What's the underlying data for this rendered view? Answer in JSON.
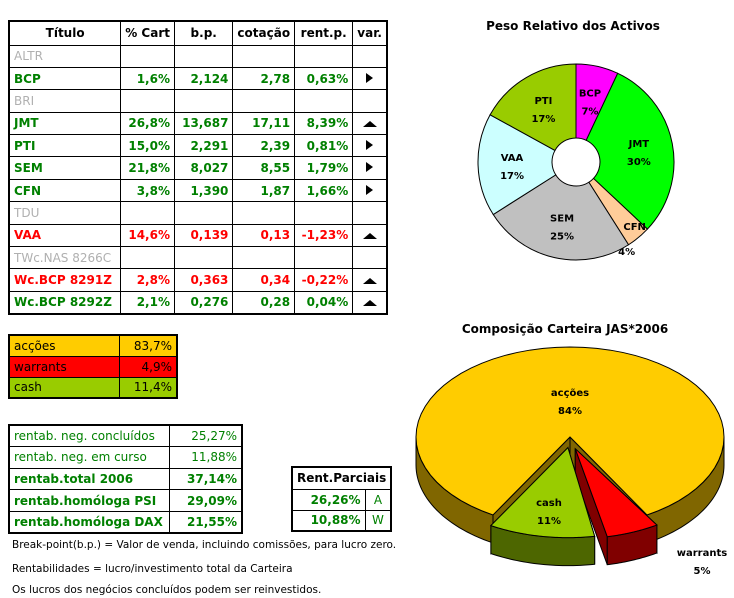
{
  "holdings": {
    "headers": [
      "Título",
      "% Cart",
      "b.p.",
      "cotação",
      "rent.p.",
      "var."
    ],
    "rows": [
      {
        "titulo": "ALTR",
        "cart": "",
        "bp": "",
        "cotacao": "",
        "rent": "",
        "var": "",
        "style": "gray"
      },
      {
        "titulo": "BCP",
        "cart": "1,6%",
        "bp": "2,124",
        "cotacao": "2,78",
        "rent": "0,63%",
        "var": "right",
        "style": "g"
      },
      {
        "titulo": "BRI",
        "cart": "",
        "bp": "",
        "cotacao": "",
        "rent": "",
        "var": "",
        "style": "gray"
      },
      {
        "titulo": "JMT",
        "cart": "26,8%",
        "bp": "13,687",
        "cotacao": "17,11",
        "rent": "8,39%",
        "var": "up",
        "style": "g"
      },
      {
        "titulo": "PTI",
        "cart": "15,0%",
        "bp": "2,291",
        "cotacao": "2,39",
        "rent": "0,81%",
        "var": "right",
        "style": "g"
      },
      {
        "titulo": "SEM",
        "cart": "21,8%",
        "bp": "8,027",
        "cotacao": "8,55",
        "rent": "1,79%",
        "var": "right",
        "style": "g"
      },
      {
        "titulo": "CFN",
        "cart": "3,8%",
        "bp": "1,390",
        "cotacao": "1,87",
        "rent": "1,66%",
        "var": "right",
        "style": "g"
      },
      {
        "titulo": "TDU",
        "cart": "",
        "bp": "",
        "cotacao": "",
        "rent": "",
        "var": "",
        "style": "gray"
      },
      {
        "titulo": "VAA",
        "cart": "14,6%",
        "bp": "0,139",
        "cotacao": "0,13",
        "rent": "-1,23%",
        "var": "up",
        "style": "r"
      },
      {
        "titulo": "TWc.NAS 8266C",
        "cart": "",
        "bp": "",
        "cotacao": "",
        "rent": "",
        "var": "",
        "style": "gray"
      },
      {
        "titulo": "Wc.BCP 8291Z",
        "cart": "2,8%",
        "bp": "0,363",
        "cotacao": "0,34",
        "rent": "-0,22%",
        "var": "up",
        "style": "r"
      },
      {
        "titulo": "Wc.BCP 8292Z",
        "cart": "2,1%",
        "bp": "0,276",
        "cotacao": "0,28",
        "rent": "0,04%",
        "var": "up",
        "style": "g"
      }
    ]
  },
  "allocation": [
    {
      "label": "acções",
      "value": "83,7%",
      "color": "#ffcc00"
    },
    {
      "label": "warrants",
      "value": "4,9%",
      "color": "#ff0000"
    },
    {
      "label": "cash",
      "value": "11,4%",
      "color": "#99cc00"
    }
  ],
  "returns": [
    {
      "label": "rentab. neg. concluídos",
      "value": "25,27%",
      "bold": false
    },
    {
      "label": "rentab. neg. em curso",
      "value": "11,88%",
      "bold": false
    },
    {
      "label": "rentab.total 2006",
      "value": "37,14%",
      "bold": true
    },
    {
      "label": "rentab.homóloga PSI",
      "value": "29,09%",
      "bold": true
    },
    {
      "label": "rentab.homóloga DAX",
      "value": "21,55%",
      "bold": true
    }
  ],
  "partial": {
    "title": "Rent.Parciais",
    "rows": [
      {
        "value": "26,26%",
        "code": "A"
      },
      {
        "value": "10,88%",
        "code": "W"
      }
    ]
  },
  "notes": [
    "Break-point(b.p.) = Valor de venda, incluindo comissões, para lucro zero.",
    "Rentabilidades = lucro/investimento total da Carteira",
    "Os lucros dos negócios concluídos podem ser reinvestidos."
  ],
  "chart_data": [
    {
      "type": "pie",
      "variant": "doughnut",
      "title": "Peso Relativo dos Activos",
      "categories": [
        "BCP",
        "JMT",
        "CFN",
        "SEM",
        "VAA",
        "PTI"
      ],
      "values": [
        7,
        30,
        4,
        25,
        17,
        17
      ],
      "value_labels": [
        "7%",
        "30%",
        "4%",
        "25%",
        "17%",
        "17%"
      ],
      "colors": [
        "#ff00ff",
        "#00ff00",
        "#ffcc99",
        "#c0c0c0",
        "#ccffff",
        "#99cc00"
      ]
    },
    {
      "type": "pie",
      "variant": "3d-exploded",
      "title": "Composição Carteira JAS*2006",
      "categories": [
        "acções",
        "warrants",
        "cash"
      ],
      "values": [
        84,
        5,
        11
      ],
      "value_labels": [
        "84%",
        "5%",
        "11%"
      ],
      "colors": [
        "#ffcc00",
        "#ff0000",
        "#99cc00"
      ],
      "side_colors": [
        "#806600",
        "#800000",
        "#4d6600"
      ]
    }
  ]
}
